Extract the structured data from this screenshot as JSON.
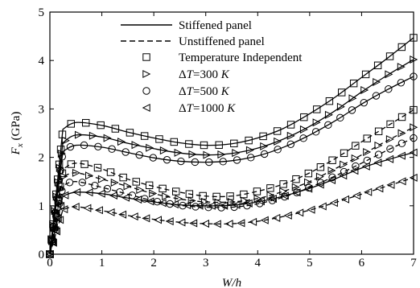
{
  "chart_data": {
    "type": "line",
    "xlabel": "W/h",
    "ylabel": "F_x (GPa)",
    "xlim": [
      0,
      7
    ],
    "ylim": [
      0,
      5
    ],
    "xticks": [
      0,
      1,
      2,
      3,
      4,
      5,
      6,
      7
    ],
    "yticks": [
      0,
      1,
      2,
      3,
      4,
      5
    ],
    "grid": false,
    "legend_position": "top-right",
    "legend": {
      "line_items": [
        {
          "label": "Stiffened panel",
          "style": "solid"
        },
        {
          "label": "Unstiffened panel",
          "style": "dashed"
        }
      ],
      "marker_items": [
        {
          "label": "Temperature Independent",
          "marker": "square"
        },
        {
          "prefix": "ΔT",
          "suffix": "=300 K",
          "marker": "triangle-right"
        },
        {
          "prefix": "ΔT",
          "suffix": "=500 K",
          "marker": "circle"
        },
        {
          "prefix": "ΔT",
          "suffix": "=1000 K",
          "marker": "triangle-left"
        }
      ]
    },
    "series": [
      {
        "panel": "stiffened",
        "case": "temperature-independent",
        "marker": "square",
        "style": "solid",
        "x": [
          0,
          0.25,
          0.5,
          1,
          1.5,
          2,
          2.5,
          3,
          3.5,
          4,
          4.5,
          5,
          5.5,
          6,
          6.5,
          7
        ],
        "y": [
          0,
          2.58,
          2.72,
          2.66,
          2.52,
          2.4,
          2.3,
          2.25,
          2.28,
          2.4,
          2.6,
          2.9,
          3.25,
          3.65,
          4.05,
          4.47
        ]
      },
      {
        "panel": "stiffened",
        "case": "dT=300K",
        "marker": "triangle-right",
        "style": "solid",
        "x": [
          0,
          0.25,
          0.5,
          1,
          1.5,
          2,
          2.5,
          3,
          3.5,
          4,
          4.5,
          5,
          5.5,
          6,
          6.5,
          7
        ],
        "y": [
          0,
          2.3,
          2.46,
          2.42,
          2.29,
          2.18,
          2.09,
          2.05,
          2.08,
          2.19,
          2.38,
          2.64,
          2.97,
          3.35,
          3.7,
          4.02
        ]
      },
      {
        "panel": "stiffened",
        "case": "dT=500K",
        "marker": "circle",
        "style": "solid",
        "x": [
          0,
          0.25,
          0.5,
          1,
          1.5,
          2,
          2.5,
          3,
          3.5,
          4,
          4.5,
          5,
          5.5,
          6,
          6.5,
          7
        ],
        "y": [
          0,
          2.12,
          2.25,
          2.21,
          2.1,
          1.99,
          1.92,
          1.9,
          1.93,
          2.03,
          2.21,
          2.46,
          2.76,
          3.1,
          3.4,
          3.67
        ]
      },
      {
        "panel": "stiffened",
        "case": "dT=1000K",
        "marker": "triangle-left",
        "style": "solid",
        "x": [
          0,
          0.25,
          0.5,
          1,
          1.5,
          2,
          2.5,
          3,
          3.5,
          4,
          4.5,
          5,
          5.5,
          6,
          6.5,
          7
        ],
        "y": [
          0,
          1.2,
          1.28,
          1.25,
          1.16,
          1.08,
          1.02,
          1.0,
          1.01,
          1.08,
          1.2,
          1.36,
          1.56,
          1.78,
          1.95,
          2.1
        ]
      },
      {
        "panel": "unstiffened",
        "case": "temperature-independent",
        "marker": "square",
        "style": "dashed",
        "x": [
          0,
          0.25,
          0.5,
          1,
          1.5,
          2,
          2.5,
          3,
          3.5,
          4,
          4.5,
          5,
          5.5,
          6,
          6.5,
          7
        ],
        "y": [
          0,
          1.75,
          1.88,
          1.76,
          1.55,
          1.4,
          1.28,
          1.2,
          1.2,
          1.3,
          1.45,
          1.68,
          1.98,
          2.32,
          2.65,
          2.98
        ]
      },
      {
        "panel": "unstiffened",
        "case": "dT=300K",
        "marker": "triangle-right",
        "style": "dashed",
        "x": [
          0,
          0.25,
          0.5,
          1,
          1.5,
          2,
          2.5,
          3,
          3.5,
          4,
          4.5,
          5,
          5.5,
          6,
          6.5,
          7
        ],
        "y": [
          0,
          1.6,
          1.68,
          1.55,
          1.4,
          1.25,
          1.14,
          1.08,
          1.08,
          1.15,
          1.3,
          1.5,
          1.77,
          2.05,
          2.35,
          2.62
        ]
      },
      {
        "panel": "unstiffened",
        "case": "dT=500K",
        "marker": "circle",
        "style": "dashed",
        "x": [
          0,
          0.25,
          0.5,
          1,
          1.5,
          2,
          2.5,
          3,
          3.5,
          4,
          4.5,
          5,
          5.5,
          6,
          6.5,
          7
        ],
        "y": [
          0,
          1.42,
          1.5,
          1.38,
          1.24,
          1.1,
          1.01,
          0.97,
          0.97,
          1.04,
          1.18,
          1.38,
          1.62,
          1.88,
          2.15,
          2.4
        ]
      },
      {
        "panel": "unstiffened",
        "case": "dT=1000K",
        "marker": "triangle-left",
        "style": "dashed",
        "x": [
          0,
          0.25,
          0.5,
          1,
          1.5,
          2,
          2.5,
          3,
          3.5,
          4,
          4.5,
          5,
          5.5,
          6,
          6.5,
          7
        ],
        "y": [
          0,
          0.92,
          0.98,
          0.9,
          0.8,
          0.72,
          0.66,
          0.63,
          0.63,
          0.68,
          0.78,
          0.91,
          1.07,
          1.24,
          1.41,
          1.58
        ]
      }
    ]
  }
}
